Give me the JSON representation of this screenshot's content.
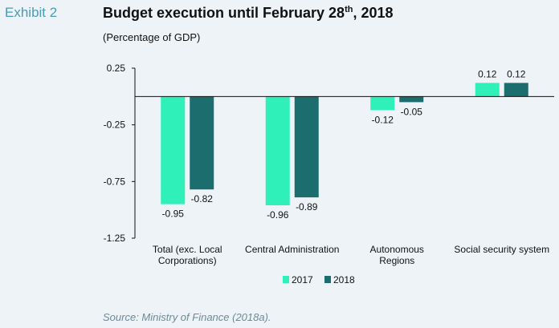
{
  "header": {
    "exhibit": "Exhibit 2",
    "title_main": "Budget execution until February 28",
    "title_sup": "th",
    "title_end": ", 2018",
    "subtitle": "(Percentage of GDP)"
  },
  "source": "Source: Ministry of Finance (2018a).",
  "chart_data": {
    "type": "bar",
    "title": "Budget execution until February 28th, 2018",
    "subtitle": "(Percentage of GDP)",
    "categories": [
      [
        "Total (exc. Local",
        "Corporations)"
      ],
      [
        "Central Administration"
      ],
      [
        "Autonomous",
        "Regions"
      ],
      [
        "Social security system"
      ]
    ],
    "series": [
      {
        "name": "2017",
        "color": "#2ef0b8",
        "values": [
          -0.95,
          -0.96,
          -0.12,
          0.12
        ]
      },
      {
        "name": "2018",
        "color": "#1c6e6e",
        "values": [
          -0.82,
          -0.89,
          -0.05,
          0.12
        ]
      }
    ],
    "data_labels": [
      [
        "-0.95",
        "-0.96",
        "-0.12",
        "0.12"
      ],
      [
        "-0.82",
        "-0.89",
        "-0.05",
        "0.12"
      ]
    ],
    "ylim": [
      -1.25,
      0.25
    ],
    "yticks": [
      0.25,
      -0.25,
      -0.75,
      -1.25
    ],
    "ytick_labels": [
      "0.25",
      "-0.25",
      "-0.75",
      "-1.25"
    ],
    "legend_position": "bottom-center",
    "grid": false
  }
}
